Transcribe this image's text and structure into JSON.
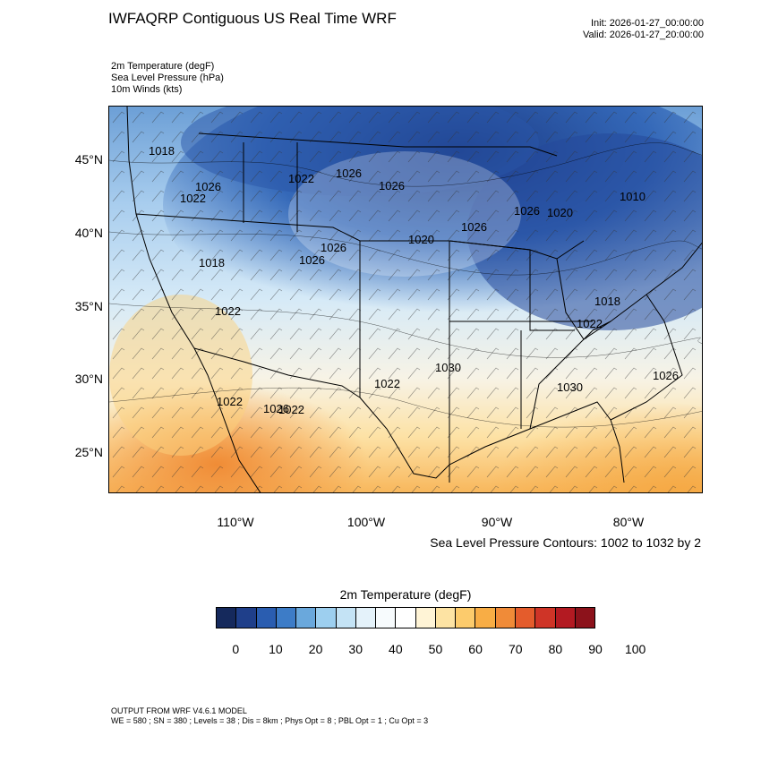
{
  "title": "IWFAQRP Contiguous US Real Time WRF",
  "init": "Init: 2026-01-27_00:00:00",
  "valid": "Valid: 2026-01-27_20:00:00",
  "fields": [
    "2m Temperature   (degF)",
    "Sea Level Pressure   (hPa)",
    "10m Winds   (kts)"
  ],
  "map": {
    "lat_labels": [
      "45°N",
      "40°N",
      "35°N",
      "30°N",
      "25°N"
    ],
    "lon_labels": [
      "110°W",
      "100°W",
      "90°W",
      "80°W"
    ],
    "pressure_labels": [
      "1018",
      "1026",
      "1022",
      "1022",
      "1026",
      "1020",
      "1026",
      "1018",
      "1022",
      "1026",
      "1026",
      "1026",
      "1022",
      "1010",
      "1020",
      "1026",
      "1018",
      "1022",
      "1030",
      "1026",
      "1022",
      "1022",
      "1030",
      "1026"
    ]
  },
  "contours_note": "Sea Level Pressure Contours: 1002 to 1032 by 2",
  "colorbar": {
    "title": "2m Temperature  (degF)",
    "labels": [
      "0",
      "10",
      "20",
      "30",
      "40",
      "50",
      "60",
      "70",
      "80",
      "90",
      "100"
    ],
    "colors": [
      "#15295c",
      "#1f3f8a",
      "#2a5db0",
      "#3d7cc7",
      "#6aa8dc",
      "#9dcfef",
      "#c4e3f5",
      "#e4f2fa",
      "#f7fbfd",
      "#ffffff",
      "#fff4d6",
      "#fde3a3",
      "#fccb6c",
      "#f8ad45",
      "#f08b38",
      "#e45c2c",
      "#cf3427",
      "#b31a22",
      "#8c121b"
    ]
  },
  "footer": {
    "line1": "OUTPUT FROM WRF V4.6.1 MODEL",
    "line2": "WE = 580 ; SN = 380 ; Levels = 38 ; Dis = 8km ; Phys Opt = 8 ; PBL Opt = 1 ; Cu Opt = 3"
  }
}
